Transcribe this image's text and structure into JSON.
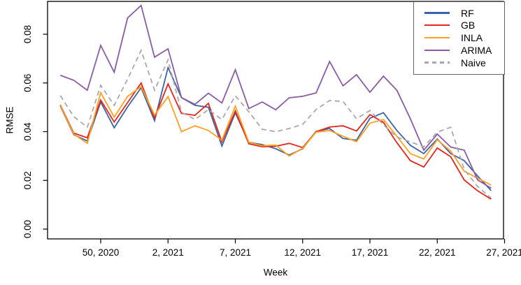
{
  "chart_data": {
    "type": "line",
    "title": "",
    "xlabel": "Week",
    "ylabel": "RMSE",
    "grid": false,
    "legend_position": "top-right",
    "y_ticks": [
      0.0,
      0.02,
      0.04,
      0.06,
      0.08
    ],
    "ylim": [
      0.0,
      0.0935
    ],
    "x_tick_labels": [
      "50, 2020",
      "2, 2021",
      "7, 2021",
      "12, 2021",
      "17, 2021",
      "22, 2021",
      "27, 2021"
    ],
    "x_tick_week_index": [
      3,
      8,
      13,
      18,
      23,
      28,
      33
    ],
    "weeks": [
      "47, 2020",
      "48, 2020",
      "49, 2020",
      "50, 2020",
      "51, 2020",
      "52, 2020",
      "53, 2020",
      "1, 2021",
      "2, 2021",
      "3, 2021",
      "4, 2021",
      "5, 2021",
      "6, 2021",
      "7, 2021",
      "8, 2021",
      "9, 2021",
      "10, 2021",
      "11, 2021",
      "12, 2021",
      "13, 2021",
      "14, 2021",
      "15, 2021",
      "16, 2021",
      "17, 2021",
      "18, 2021",
      "19, 2021",
      "20, 2021",
      "21, 2021",
      "22, 2021",
      "23, 2021",
      "24, 2021",
      "25, 2021",
      "26, 2021"
    ],
    "series": [
      {
        "name": "RF",
        "color": "#3B63A8",
        "dash": false,
        "values": [
          0.0505,
          0.0387,
          0.0362,
          0.0522,
          0.0416,
          0.0502,
          0.058,
          0.0445,
          0.0663,
          0.054,
          0.0508,
          0.05,
          0.0341,
          0.0477,
          0.0356,
          0.0347,
          0.033,
          0.0304,
          0.033,
          0.0401,
          0.0413,
          0.0372,
          0.0365,
          0.0455,
          0.0478,
          0.0405,
          0.0344,
          0.031,
          0.037,
          0.031,
          0.0281,
          0.0218,
          0.0158
        ]
      },
      {
        "name": "GB",
        "color": "#E8251C",
        "dash": false,
        "values": [
          0.051,
          0.0394,
          0.0375,
          0.053,
          0.044,
          0.052,
          0.06,
          0.0456,
          0.0596,
          0.0475,
          0.0467,
          0.0516,
          0.0358,
          0.0485,
          0.035,
          0.0338,
          0.034,
          0.0352,
          0.0335,
          0.04,
          0.0419,
          0.0424,
          0.0403,
          0.047,
          0.0438,
          0.0355,
          0.0281,
          0.0255,
          0.0333,
          0.0297,
          0.0202,
          0.0157,
          0.0123
        ]
      },
      {
        "name": "INLA",
        "color": "#FFA01E",
        "dash": false,
        "values": [
          0.0508,
          0.039,
          0.0352,
          0.056,
          0.046,
          0.0545,
          0.0585,
          0.0468,
          0.0544,
          0.04,
          0.0424,
          0.0405,
          0.0365,
          0.0505,
          0.0356,
          0.0342,
          0.0345,
          0.03,
          0.0332,
          0.0398,
          0.0405,
          0.0381,
          0.0359,
          0.0435,
          0.045,
          0.0381,
          0.031,
          0.0288,
          0.0367,
          0.032,
          0.0238,
          0.0209,
          0.0181
        ]
      },
      {
        "name": "ARIMA",
        "color": "#8C5BA6",
        "dash": false,
        "values": [
          0.0631,
          0.0611,
          0.057,
          0.0754,
          0.0644,
          0.0867,
          0.0918,
          0.0706,
          0.074,
          0.054,
          0.0512,
          0.0558,
          0.0518,
          0.0654,
          0.0495,
          0.0522,
          0.049,
          0.0539,
          0.0545,
          0.0559,
          0.0688,
          0.0588,
          0.0634,
          0.0562,
          0.0628,
          0.057,
          0.0453,
          0.0324,
          0.039,
          0.0337,
          0.0324,
          0.0202,
          0.0168
        ]
      },
      {
        "name": "Naive",
        "color": "#A9A9A9",
        "dash": true,
        "values": [
          0.0548,
          0.0462,
          0.0418,
          0.059,
          0.0508,
          0.0616,
          0.0734,
          0.057,
          0.0695,
          0.048,
          0.045,
          0.0491,
          0.045,
          0.0547,
          0.0482,
          0.041,
          0.04,
          0.0413,
          0.043,
          0.0491,
          0.0528,
          0.0524,
          0.0453,
          0.0487,
          0.0428,
          0.0378,
          0.0358,
          0.0338,
          0.0398,
          0.0418,
          0.0245,
          0.0175,
          0.0128
        ]
      }
    ]
  }
}
